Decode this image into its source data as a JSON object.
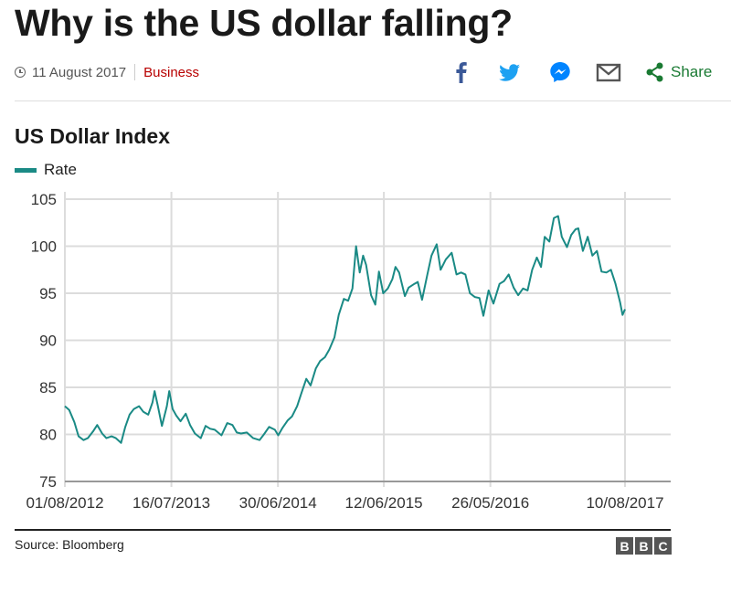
{
  "article": {
    "headline": "Why is the US dollar falling?",
    "date": "11 August 2017",
    "section": "Business",
    "share_label": "Share"
  },
  "icons": {
    "clock": "clock-icon",
    "facebook": "facebook-icon",
    "twitter": "twitter-icon",
    "messenger": "messenger-icon",
    "email": "email-icon",
    "share": "share-icon"
  },
  "colors": {
    "series": "#1a8a85",
    "facebook": "#3b5998",
    "twitter": "#1da1f2",
    "messenger": "#0084ff",
    "email": "#555555",
    "share": "#1a7a33",
    "section": "#b80000"
  },
  "footer": {
    "source": "Source: Bloomberg",
    "logo_letters": [
      "B",
      "B",
      "C"
    ]
  },
  "chart_data": {
    "type": "line",
    "title": "US Dollar Index",
    "xlabel": "",
    "ylabel": "",
    "legend": "top-left",
    "grid": true,
    "ylim": [
      75,
      105
    ],
    "yticks": [
      75,
      80,
      85,
      90,
      95,
      100,
      105
    ],
    "xlim": [
      "2012-08-01",
      "2017-08-10"
    ],
    "xticks": [
      "2012-08-01",
      "2013-07-16",
      "2014-06-30",
      "2015-06-12",
      "2016-05-26",
      "2017-08-10"
    ],
    "xtick_labels": [
      "01/08/2012",
      "16/07/2013",
      "30/06/2014",
      "12/06/2015",
      "26/05/2016",
      "10/08/2017"
    ],
    "series": [
      {
        "name": "Rate",
        "points": [
          [
            "2012-08-01",
            83.0
          ],
          [
            "2012-08-15",
            82.6
          ],
          [
            "2012-09-01",
            81.3
          ],
          [
            "2012-09-15",
            79.8
          ],
          [
            "2012-10-01",
            79.4
          ],
          [
            "2012-10-15",
            79.6
          ],
          [
            "2012-11-01",
            80.3
          ],
          [
            "2012-11-15",
            81.0
          ],
          [
            "2012-12-01",
            80.1
          ],
          [
            "2012-12-15",
            79.6
          ],
          [
            "2013-01-01",
            79.8
          ],
          [
            "2013-01-15",
            79.6
          ],
          [
            "2013-02-01",
            79.1
          ],
          [
            "2013-02-15",
            80.8
          ],
          [
            "2013-03-01",
            82.1
          ],
          [
            "2013-03-15",
            82.7
          ],
          [
            "2013-04-01",
            83.0
          ],
          [
            "2013-04-15",
            82.4
          ],
          [
            "2013-05-01",
            82.1
          ],
          [
            "2013-05-15",
            83.4
          ],
          [
            "2013-05-22",
            84.6
          ],
          [
            "2013-06-01",
            83.1
          ],
          [
            "2013-06-15",
            80.9
          ],
          [
            "2013-07-01",
            83.0
          ],
          [
            "2013-07-09",
            84.6
          ],
          [
            "2013-07-20",
            82.7
          ],
          [
            "2013-08-01",
            82.0
          ],
          [
            "2013-08-15",
            81.4
          ],
          [
            "2013-09-01",
            82.2
          ],
          [
            "2013-09-15",
            81.0
          ],
          [
            "2013-10-01",
            80.1
          ],
          [
            "2013-10-20",
            79.6
          ],
          [
            "2013-11-05",
            80.9
          ],
          [
            "2013-11-20",
            80.6
          ],
          [
            "2013-12-05",
            80.5
          ],
          [
            "2013-12-27",
            79.9
          ],
          [
            "2014-01-15",
            81.2
          ],
          [
            "2014-02-01",
            81.0
          ],
          [
            "2014-02-15",
            80.2
          ],
          [
            "2014-03-01",
            80.1
          ],
          [
            "2014-03-20",
            80.2
          ],
          [
            "2014-04-10",
            79.6
          ],
          [
            "2014-05-01",
            79.4
          ],
          [
            "2014-05-15",
            80.0
          ],
          [
            "2014-06-01",
            80.8
          ],
          [
            "2014-06-20",
            80.5
          ],
          [
            "2014-07-01",
            79.9
          ],
          [
            "2014-07-15",
            80.7
          ],
          [
            "2014-08-01",
            81.5
          ],
          [
            "2014-08-15",
            81.9
          ],
          [
            "2014-09-01",
            83.0
          ],
          [
            "2014-09-15",
            84.4
          ],
          [
            "2014-10-01",
            85.9
          ],
          [
            "2014-10-15",
            85.2
          ],
          [
            "2014-11-01",
            87.0
          ],
          [
            "2014-11-15",
            87.8
          ],
          [
            "2014-12-01",
            88.2
          ],
          [
            "2014-12-15",
            89.0
          ],
          [
            "2015-01-01",
            90.3
          ],
          [
            "2015-01-15",
            92.7
          ],
          [
            "2015-02-01",
            94.4
          ],
          [
            "2015-02-15",
            94.2
          ],
          [
            "2015-03-01",
            95.5
          ],
          [
            "2015-03-13",
            100.0
          ],
          [
            "2015-03-25",
            97.2
          ],
          [
            "2015-04-05",
            99.0
          ],
          [
            "2015-04-15",
            98.0
          ],
          [
            "2015-05-01",
            94.8
          ],
          [
            "2015-05-15",
            93.8
          ],
          [
            "2015-05-27",
            97.3
          ],
          [
            "2015-06-10",
            95.0
          ],
          [
            "2015-06-25",
            95.5
          ],
          [
            "2015-07-10",
            96.5
          ],
          [
            "2015-07-20",
            97.8
          ],
          [
            "2015-08-01",
            97.2
          ],
          [
            "2015-08-20",
            94.7
          ],
          [
            "2015-09-01",
            95.6
          ],
          [
            "2015-09-20",
            96.0
          ],
          [
            "2015-10-01",
            96.2
          ],
          [
            "2015-10-15",
            94.3
          ],
          [
            "2015-11-01",
            96.9
          ],
          [
            "2015-11-15",
            99.0
          ],
          [
            "2015-12-02",
            100.2
          ],
          [
            "2015-12-15",
            97.5
          ],
          [
            "2016-01-01",
            98.6
          ],
          [
            "2016-01-20",
            99.3
          ],
          [
            "2016-02-05",
            97.0
          ],
          [
            "2016-02-20",
            97.2
          ],
          [
            "2016-03-05",
            97.0
          ],
          [
            "2016-03-20",
            95.0
          ],
          [
            "2016-04-05",
            94.6
          ],
          [
            "2016-04-20",
            94.5
          ],
          [
            "2016-05-03",
            92.6
          ],
          [
            "2016-05-20",
            95.3
          ],
          [
            "2016-06-05",
            93.9
          ],
          [
            "2016-06-25",
            96.0
          ],
          [
            "2016-07-10",
            96.3
          ],
          [
            "2016-07-25",
            97.0
          ],
          [
            "2016-08-10",
            95.6
          ],
          [
            "2016-08-25",
            94.8
          ],
          [
            "2016-09-10",
            95.5
          ],
          [
            "2016-09-25",
            95.3
          ],
          [
            "2016-10-10",
            97.5
          ],
          [
            "2016-10-25",
            98.8
          ],
          [
            "2016-11-08",
            97.8
          ],
          [
            "2016-11-20",
            101.0
          ],
          [
            "2016-12-05",
            100.5
          ],
          [
            "2016-12-20",
            103.0
          ],
          [
            "2017-01-03",
            103.2
          ],
          [
            "2017-01-15",
            101.0
          ],
          [
            "2017-02-01",
            99.9
          ],
          [
            "2017-02-15",
            101.2
          ],
          [
            "2017-03-01",
            101.8
          ],
          [
            "2017-03-10",
            101.9
          ],
          [
            "2017-03-25",
            99.5
          ],
          [
            "2017-04-10",
            101.0
          ],
          [
            "2017-04-25",
            99.0
          ],
          [
            "2017-05-10",
            99.5
          ],
          [
            "2017-05-25",
            97.3
          ],
          [
            "2017-06-10",
            97.2
          ],
          [
            "2017-06-25",
            97.5
          ],
          [
            "2017-07-10",
            96.0
          ],
          [
            "2017-07-25",
            94.0
          ],
          [
            "2017-08-02",
            92.7
          ],
          [
            "2017-08-10",
            93.3
          ]
        ]
      }
    ]
  }
}
